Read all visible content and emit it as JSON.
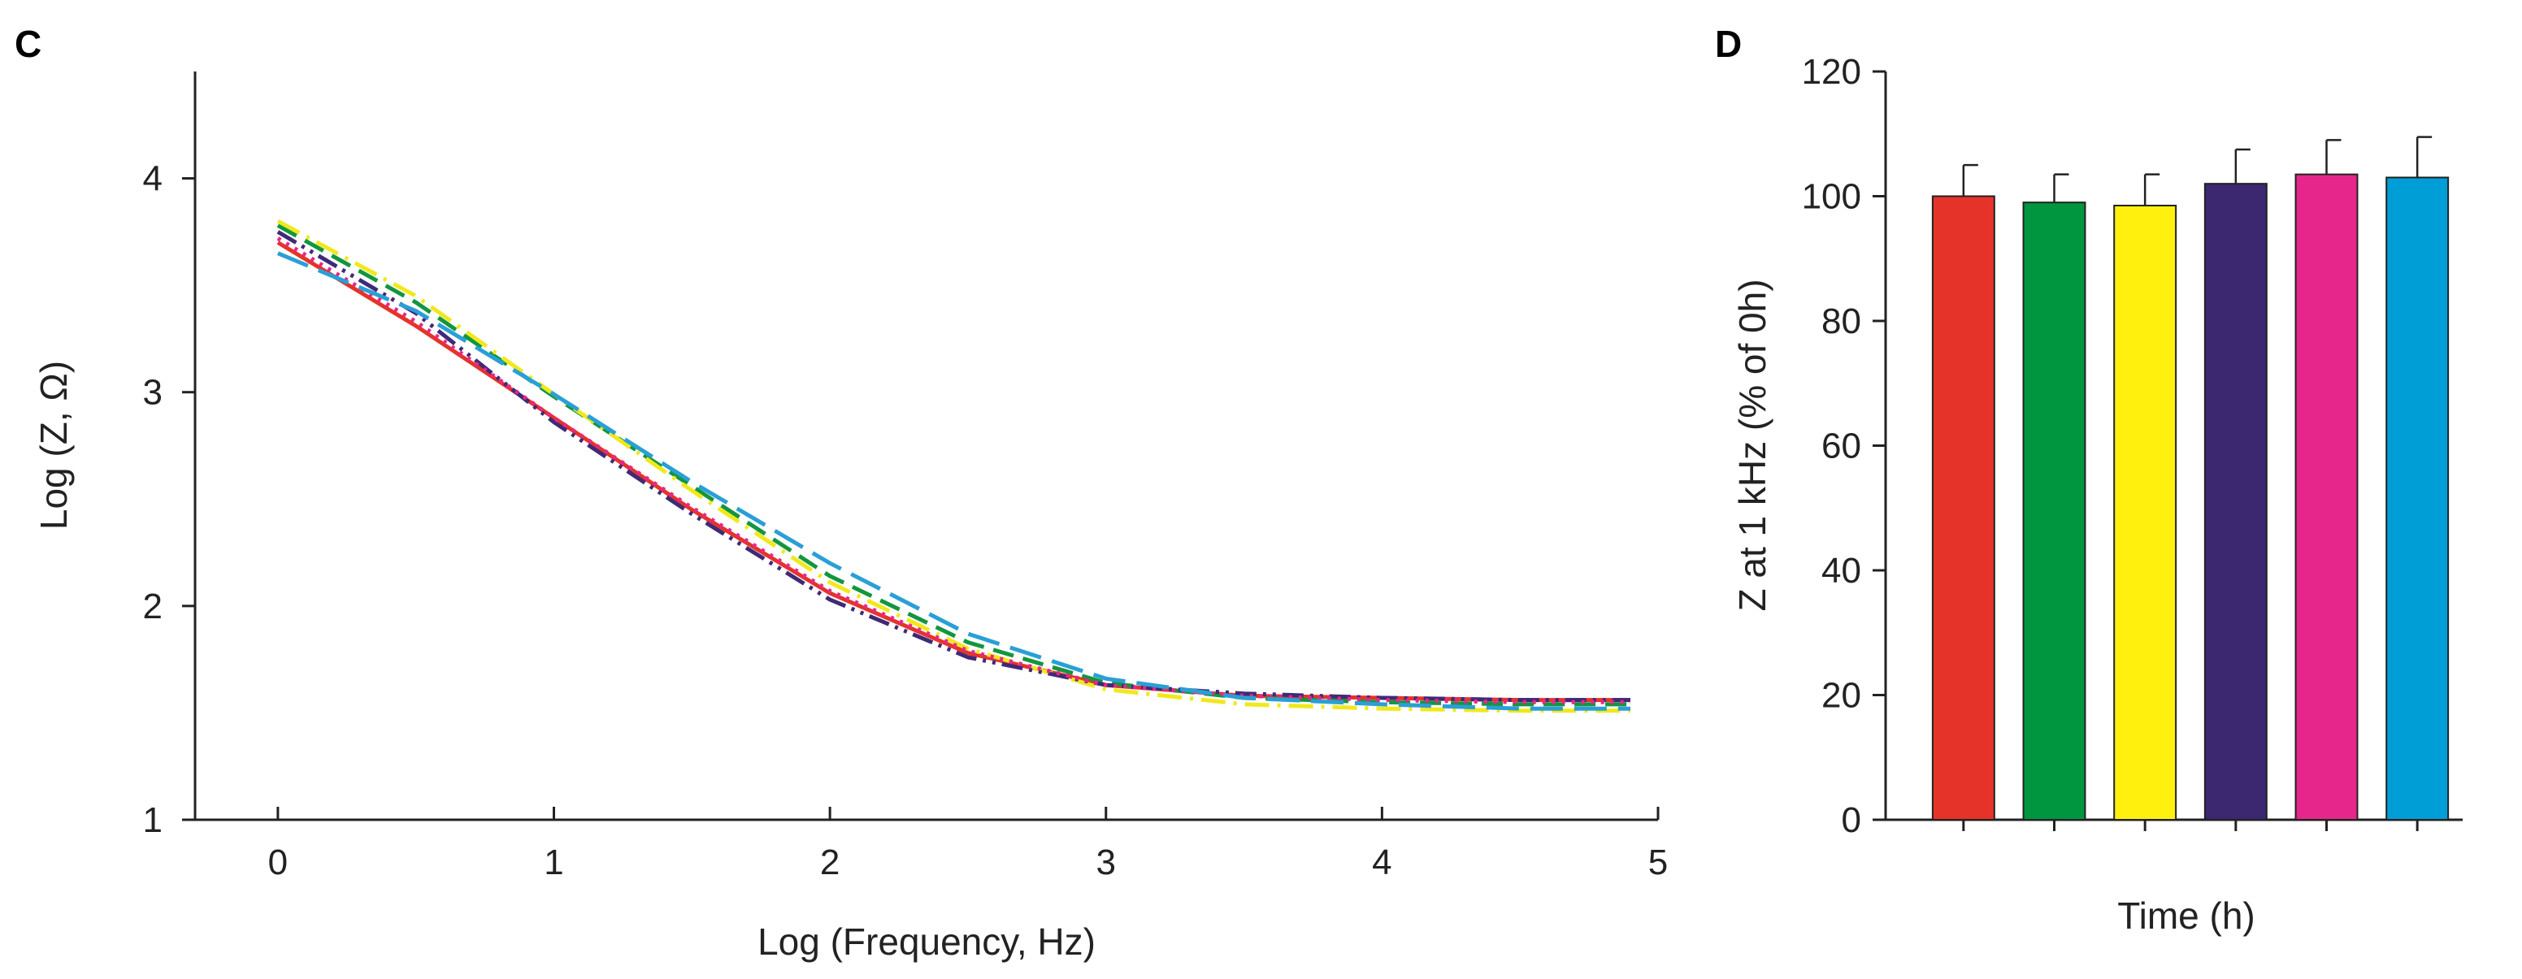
{
  "chart_data": [
    {
      "panel": "C",
      "type": "line",
      "xlabel": "Log (Frequency, Hz)",
      "ylabel": "Log (Z, Ω)",
      "xlim": [
        -0.3,
        5
      ],
      "ylim": [
        1,
        4.5
      ],
      "xticks": [
        0,
        1,
        2,
        3,
        4,
        5
      ],
      "yticks": [
        1,
        2,
        3,
        4
      ],
      "series": [
        {
          "name": "red",
          "color": "#e63329",
          "dash": "solid",
          "x": [
            0,
            0.5,
            1,
            1.5,
            2,
            2.5,
            3,
            3.5,
            4,
            4.5,
            4.9
          ],
          "y": [
            3.7,
            3.31,
            2.88,
            2.45,
            2.06,
            1.78,
            1.63,
            1.58,
            1.57,
            1.56,
            1.56
          ]
        },
        {
          "name": "green",
          "color": "#12963e",
          "dash": "dashed",
          "x": [
            0,
            0.5,
            1,
            1.5,
            2,
            2.5,
            3,
            3.5,
            4,
            4.5,
            4.9
          ],
          "y": [
            3.78,
            3.42,
            2.98,
            2.56,
            2.14,
            1.83,
            1.64,
            1.57,
            1.55,
            1.54,
            1.54
          ]
        },
        {
          "name": "yellow",
          "color": "#f1e81c",
          "dash": "dashdot",
          "x": [
            0,
            0.5,
            1,
            1.5,
            2,
            2.5,
            3,
            3.5,
            4,
            4.5,
            4.9
          ],
          "y": [
            3.8,
            3.45,
            2.99,
            2.54,
            2.11,
            1.8,
            1.61,
            1.54,
            1.52,
            1.51,
            1.51
          ]
        },
        {
          "name": "purple",
          "color": "#3e2a78",
          "dash": "dashdotdot",
          "x": [
            0,
            0.5,
            1,
            1.5,
            2,
            2.5,
            3,
            3.5,
            4,
            4.5,
            4.9
          ],
          "y": [
            3.75,
            3.37,
            2.86,
            2.43,
            2.03,
            1.76,
            1.63,
            1.59,
            1.57,
            1.56,
            1.56
          ]
        },
        {
          "name": "magenta",
          "color": "#e6278a",
          "dash": "dotted",
          "x": [
            0,
            0.5,
            1,
            1.5,
            2,
            2.5,
            3,
            3.5,
            4,
            4.5,
            4.9
          ],
          "y": [
            3.72,
            3.33,
            2.88,
            2.46,
            2.07,
            1.79,
            1.63,
            1.58,
            1.56,
            1.55,
            1.55
          ]
        },
        {
          "name": "cyan",
          "color": "#2a9fd6",
          "dash": "longdash",
          "x": [
            0,
            0.5,
            1,
            1.5,
            2,
            2.5,
            3,
            3.5,
            4,
            4.5,
            4.9
          ],
          "y": [
            3.65,
            3.38,
            2.99,
            2.58,
            2.2,
            1.87,
            1.66,
            1.57,
            1.54,
            1.52,
            1.52
          ]
        }
      ]
    },
    {
      "panel": "D",
      "type": "bar",
      "xlabel": "Time (h)",
      "ylabel": "Z at 1 kHz (% of 0h)",
      "ylim": [
        0,
        120
      ],
      "yticks": [
        0,
        20,
        40,
        60,
        80,
        100,
        120
      ],
      "values": [
        100,
        99,
        98.5,
        102,
        103.5,
        103
      ],
      "errors": [
        5,
        4.5,
        5,
        5.5,
        5.5,
        6.5
      ],
      "colors": [
        "#e63329",
        "#00963f",
        "#fff10d",
        "#3c2870",
        "#e6268a",
        "#009ed6"
      ]
    }
  ]
}
